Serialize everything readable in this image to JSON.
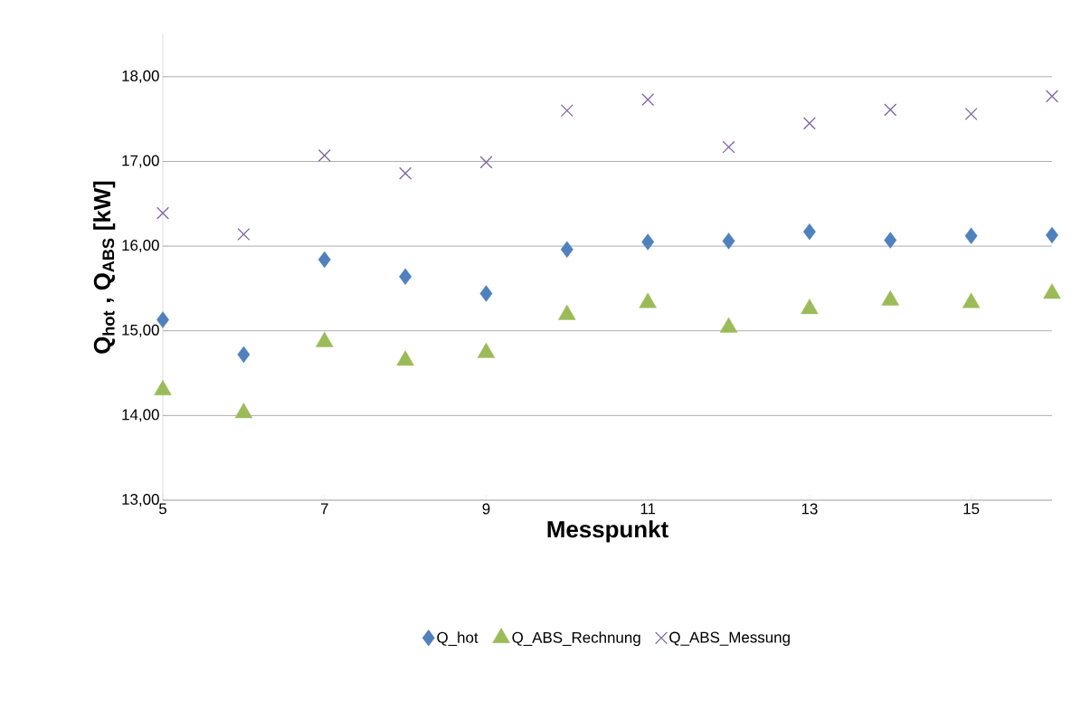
{
  "chart_data": {
    "type": "scatter",
    "xlabel": "Messpunkt",
    "ylabel": "Q$_{hot}$ , Q$_{ABS}$ [kW]",
    "x": [
      5,
      6,
      7,
      8,
      9,
      10,
      11,
      12,
      13,
      14,
      15,
      16
    ],
    "series": [
      {
        "name": "Q_hot",
        "color": "#4f81bd",
        "marker": "diamond",
        "values": [
          15.13,
          14.72,
          15.84,
          15.64,
          15.44,
          15.96,
          16.05,
          16.06,
          16.17,
          16.07,
          16.12,
          16.13
        ]
      },
      {
        "name": "Q_ABS_Rechnung",
        "color": "#9bbb59",
        "marker": "triangle",
        "values": [
          14.3,
          14.03,
          14.87,
          14.65,
          14.74,
          15.19,
          15.33,
          15.04,
          15.26,
          15.36,
          15.33,
          15.44
        ]
      },
      {
        "name": "Q_ABS_Messung",
        "color": "#8064a2",
        "marker": "cross",
        "values": [
          16.39,
          16.14,
          17.07,
          16.86,
          16.99,
          17.6,
          17.73,
          17.17,
          17.45,
          17.61,
          17.56,
          17.77
        ]
      }
    ],
    "xlim": [
      5,
      16
    ],
    "xticks": [
      5,
      7,
      9,
      11,
      13,
      15
    ],
    "ylim": [
      13,
      18.5
    ],
    "yticks": [
      {
        "value": 13,
        "label": "13,00"
      },
      {
        "value": 14,
        "label": "14,00"
      },
      {
        "value": 15,
        "label": "15,00"
      },
      {
        "value": 16,
        "label": "16,00"
      },
      {
        "value": 17,
        "label": "17,00"
      },
      {
        "value": 18,
        "label": "18,00"
      }
    ],
    "grid": "y",
    "legend": "bottom"
  }
}
